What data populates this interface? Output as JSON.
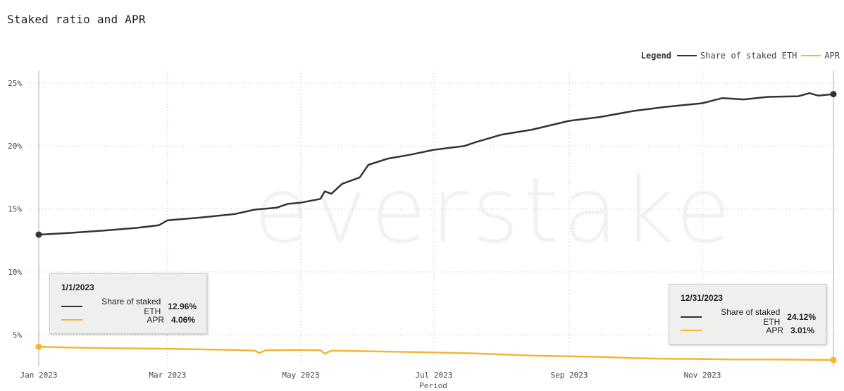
{
  "chart_data": {
    "type": "line",
    "title": "Staked ratio and APR",
    "xlabel": "Period",
    "ylabel": "",
    "ylim": [
      2.5,
      26.0
    ],
    "yticks": [
      5,
      10,
      15,
      20,
      25
    ],
    "ytick_labels": [
      "5%",
      "10%",
      "15%",
      "20%",
      "25%"
    ],
    "x_dates": [
      "2023-01-01",
      "2023-03-01",
      "2023-05-01",
      "2023-07-01",
      "2023-09-01",
      "2023-11-01"
    ],
    "xtick_labels": [
      "Jan 2023",
      "Mar 2023",
      "May 2023",
      "Jul 2023",
      "Sep 2023",
      "Nov 2023"
    ],
    "xlim": [
      "2023-01-01",
      "2023-12-31"
    ],
    "grid": true,
    "legend_title": "Legend",
    "legend_position": "top-right",
    "series": [
      {
        "name": "Share of staked ETH",
        "color": "#333333",
        "points": [
          [
            "2023-01-01",
            12.96
          ],
          [
            "2023-01-15",
            13.1
          ],
          [
            "2023-02-01",
            13.3
          ],
          [
            "2023-02-15",
            13.5
          ],
          [
            "2023-02-25",
            13.7
          ],
          [
            "2023-03-01",
            14.1
          ],
          [
            "2023-03-15",
            14.3
          ],
          [
            "2023-04-01",
            14.6
          ],
          [
            "2023-04-10",
            14.95
          ],
          [
            "2023-04-20",
            15.1
          ],
          [
            "2023-04-25",
            15.4
          ],
          [
            "2023-05-01",
            15.5
          ],
          [
            "2023-05-10",
            15.8
          ],
          [
            "2023-05-12",
            16.4
          ],
          [
            "2023-05-15",
            16.2
          ],
          [
            "2023-05-20",
            17.0
          ],
          [
            "2023-05-28",
            17.5
          ],
          [
            "2023-06-01",
            18.5
          ],
          [
            "2023-06-10",
            19.0
          ],
          [
            "2023-06-20",
            19.3
          ],
          [
            "2023-07-01",
            19.7
          ],
          [
            "2023-07-15",
            20.0
          ],
          [
            "2023-07-20",
            20.3
          ],
          [
            "2023-08-01",
            20.9
          ],
          [
            "2023-08-15",
            21.3
          ],
          [
            "2023-09-01",
            22.0
          ],
          [
            "2023-09-15",
            22.3
          ],
          [
            "2023-10-01",
            22.8
          ],
          [
            "2023-10-15",
            23.1
          ],
          [
            "2023-11-01",
            23.4
          ],
          [
            "2023-11-10",
            23.8
          ],
          [
            "2023-11-20",
            23.7
          ],
          [
            "2023-12-01",
            23.9
          ],
          [
            "2023-12-15",
            23.95
          ],
          [
            "2023-12-20",
            24.2
          ],
          [
            "2023-12-24",
            24.0
          ],
          [
            "2023-12-31",
            24.12
          ]
        ]
      },
      {
        "name": "APR",
        "color": "#f2b632",
        "points": [
          [
            "2023-01-01",
            4.06
          ],
          [
            "2023-01-15",
            4.0
          ],
          [
            "2023-02-01",
            3.95
          ],
          [
            "2023-02-15",
            3.92
          ],
          [
            "2023-03-01",
            3.9
          ],
          [
            "2023-03-15",
            3.85
          ],
          [
            "2023-04-01",
            3.8
          ],
          [
            "2023-04-10",
            3.75
          ],
          [
            "2023-04-12",
            3.55
          ],
          [
            "2023-04-15",
            3.78
          ],
          [
            "2023-05-01",
            3.8
          ],
          [
            "2023-05-10",
            3.78
          ],
          [
            "2023-05-12",
            3.5
          ],
          [
            "2023-05-15",
            3.75
          ],
          [
            "2023-06-01",
            3.7
          ],
          [
            "2023-06-15",
            3.65
          ],
          [
            "2023-07-01",
            3.6
          ],
          [
            "2023-07-15",
            3.55
          ],
          [
            "2023-08-01",
            3.45
          ],
          [
            "2023-08-15",
            3.35
          ],
          [
            "2023-09-01",
            3.3
          ],
          [
            "2023-09-15",
            3.25
          ],
          [
            "2023-10-01",
            3.15
          ],
          [
            "2023-10-15",
            3.1
          ],
          [
            "2023-11-01",
            3.08
          ],
          [
            "2023-11-15",
            3.05
          ],
          [
            "2023-12-01",
            3.05
          ],
          [
            "2023-12-15",
            3.03
          ],
          [
            "2023-12-31",
            3.01
          ]
        ]
      }
    ]
  },
  "tooltips": [
    {
      "date": "1/1/2023",
      "rows": [
        {
          "name": "Share of staked ETH",
          "value": "12.96%",
          "color": "#333333"
        },
        {
          "name": "APR",
          "value": "4.06%",
          "color": "#f2b632"
        }
      ]
    },
    {
      "date": "12/31/2023",
      "rows": [
        {
          "name": "Share of staked ETH",
          "value": "24.12%",
          "color": "#333333"
        },
        {
          "name": "APR",
          "value": "3.01%",
          "color": "#f2b632"
        }
      ]
    }
  ],
  "watermark": "everstake"
}
